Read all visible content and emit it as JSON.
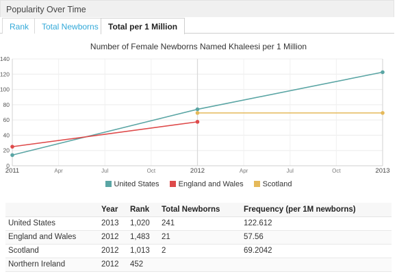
{
  "header": {
    "title": "Popularity Over Time"
  },
  "tabs": [
    {
      "label": "Rank",
      "active": false
    },
    {
      "label": "Total Newborns",
      "active": false
    },
    {
      "label": "Total per 1 Million",
      "active": true
    }
  ],
  "chart_data": {
    "type": "line",
    "title": "Number of Female Newborns Named Khaleesi per 1 Million",
    "xlabel": "",
    "ylabel": "",
    "ylim": [
      0,
      140
    ],
    "yticks": [
      "0",
      "20",
      "40",
      "60",
      "80",
      "100",
      "120",
      "140"
    ],
    "xticks": [
      {
        "label": "2011",
        "x": "2011-01",
        "major": true
      },
      {
        "label": "Apr",
        "x": "2011-04",
        "major": false
      },
      {
        "label": "Jul",
        "x": "2011-07",
        "major": false
      },
      {
        "label": "Oct",
        "x": "2011-10",
        "major": false
      },
      {
        "label": "2012",
        "x": "2012-01",
        "major": true
      },
      {
        "label": "Apr",
        "x": "2012-04",
        "major": false
      },
      {
        "label": "Jul",
        "x": "2012-07",
        "major": false
      },
      {
        "label": "Oct",
        "x": "2012-10",
        "major": false
      },
      {
        "label": "2013",
        "x": "2013-01",
        "major": true
      }
    ],
    "series": [
      {
        "name": "United States",
        "color": "#5aa5a4",
        "points": [
          {
            "x": "2011",
            "y": 14
          },
          {
            "x": "2012",
            "y": 74
          },
          {
            "x": "2013",
            "y": 122.612
          }
        ]
      },
      {
        "name": "England and Wales",
        "color": "#de4a4a",
        "points": [
          {
            "x": "2011",
            "y": 25
          },
          {
            "x": "2012",
            "y": 57.56
          }
        ]
      },
      {
        "name": "Scotland",
        "color": "#e5b95a",
        "points": [
          {
            "x": "2012",
            "y": 69.2042
          },
          {
            "x": "2013",
            "y": 69.2042
          }
        ]
      }
    ],
    "grid": true,
    "legend": "bottom"
  },
  "table": {
    "headers": [
      "",
      "Year",
      "Rank",
      "Total Newborns",
      "Frequency (per 1M newborns)"
    ],
    "rows": [
      [
        "United States",
        "2013",
        "1,020",
        "241",
        "122.612"
      ],
      [
        "England and Wales",
        "2012",
        "1,483",
        "21",
        "57.56"
      ],
      [
        "Scotland",
        "2012",
        "1,013",
        "2",
        "69.2042"
      ],
      [
        "Northern Ireland",
        "2012",
        "452",
        "",
        ""
      ]
    ]
  }
}
